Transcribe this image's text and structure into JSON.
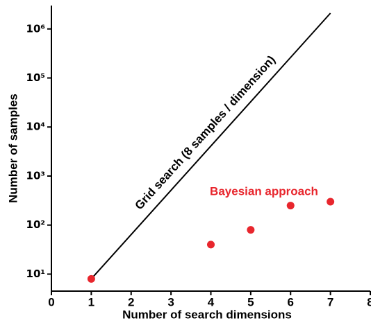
{
  "chart_data": {
    "type": "scatter",
    "xlabel": "Number of search dimensions",
    "ylabel": "Number of samples",
    "xlim": [
      0,
      8
    ],
    "xticks": [
      0,
      1,
      2,
      3,
      4,
      5,
      6,
      7,
      8
    ],
    "ylim": [
      4.5,
      3000000
    ],
    "yscale": "log",
    "yticks": [
      {
        "value": 10,
        "label": "10¹"
      },
      {
        "value": 100,
        "label": "10²"
      },
      {
        "value": 1000,
        "label": "10³"
      },
      {
        "value": 10000,
        "label": "10⁴"
      },
      {
        "value": 100000,
        "label": "10⁵"
      },
      {
        "value": 1000000,
        "label": "10⁶"
      }
    ],
    "grid": false,
    "series": [
      {
        "type": "line",
        "color": "#000000",
        "x": [
          1,
          2,
          3,
          4,
          5,
          6,
          7
        ],
        "values": [
          8,
          64,
          512,
          4096,
          32768,
          262144,
          2097152
        ]
      },
      {
        "type": "scatter",
        "color": "#e8262d",
        "x": [
          1,
          4,
          5,
          6,
          7
        ],
        "values": [
          8,
          40,
          80,
          250,
          300
        ]
      }
    ],
    "annotations": [
      {
        "text": "Grid search (8 samples / dimension)",
        "color": "#000000"
      },
      {
        "text": "Bayesian approach",
        "color": "#e8262d"
      }
    ]
  }
}
